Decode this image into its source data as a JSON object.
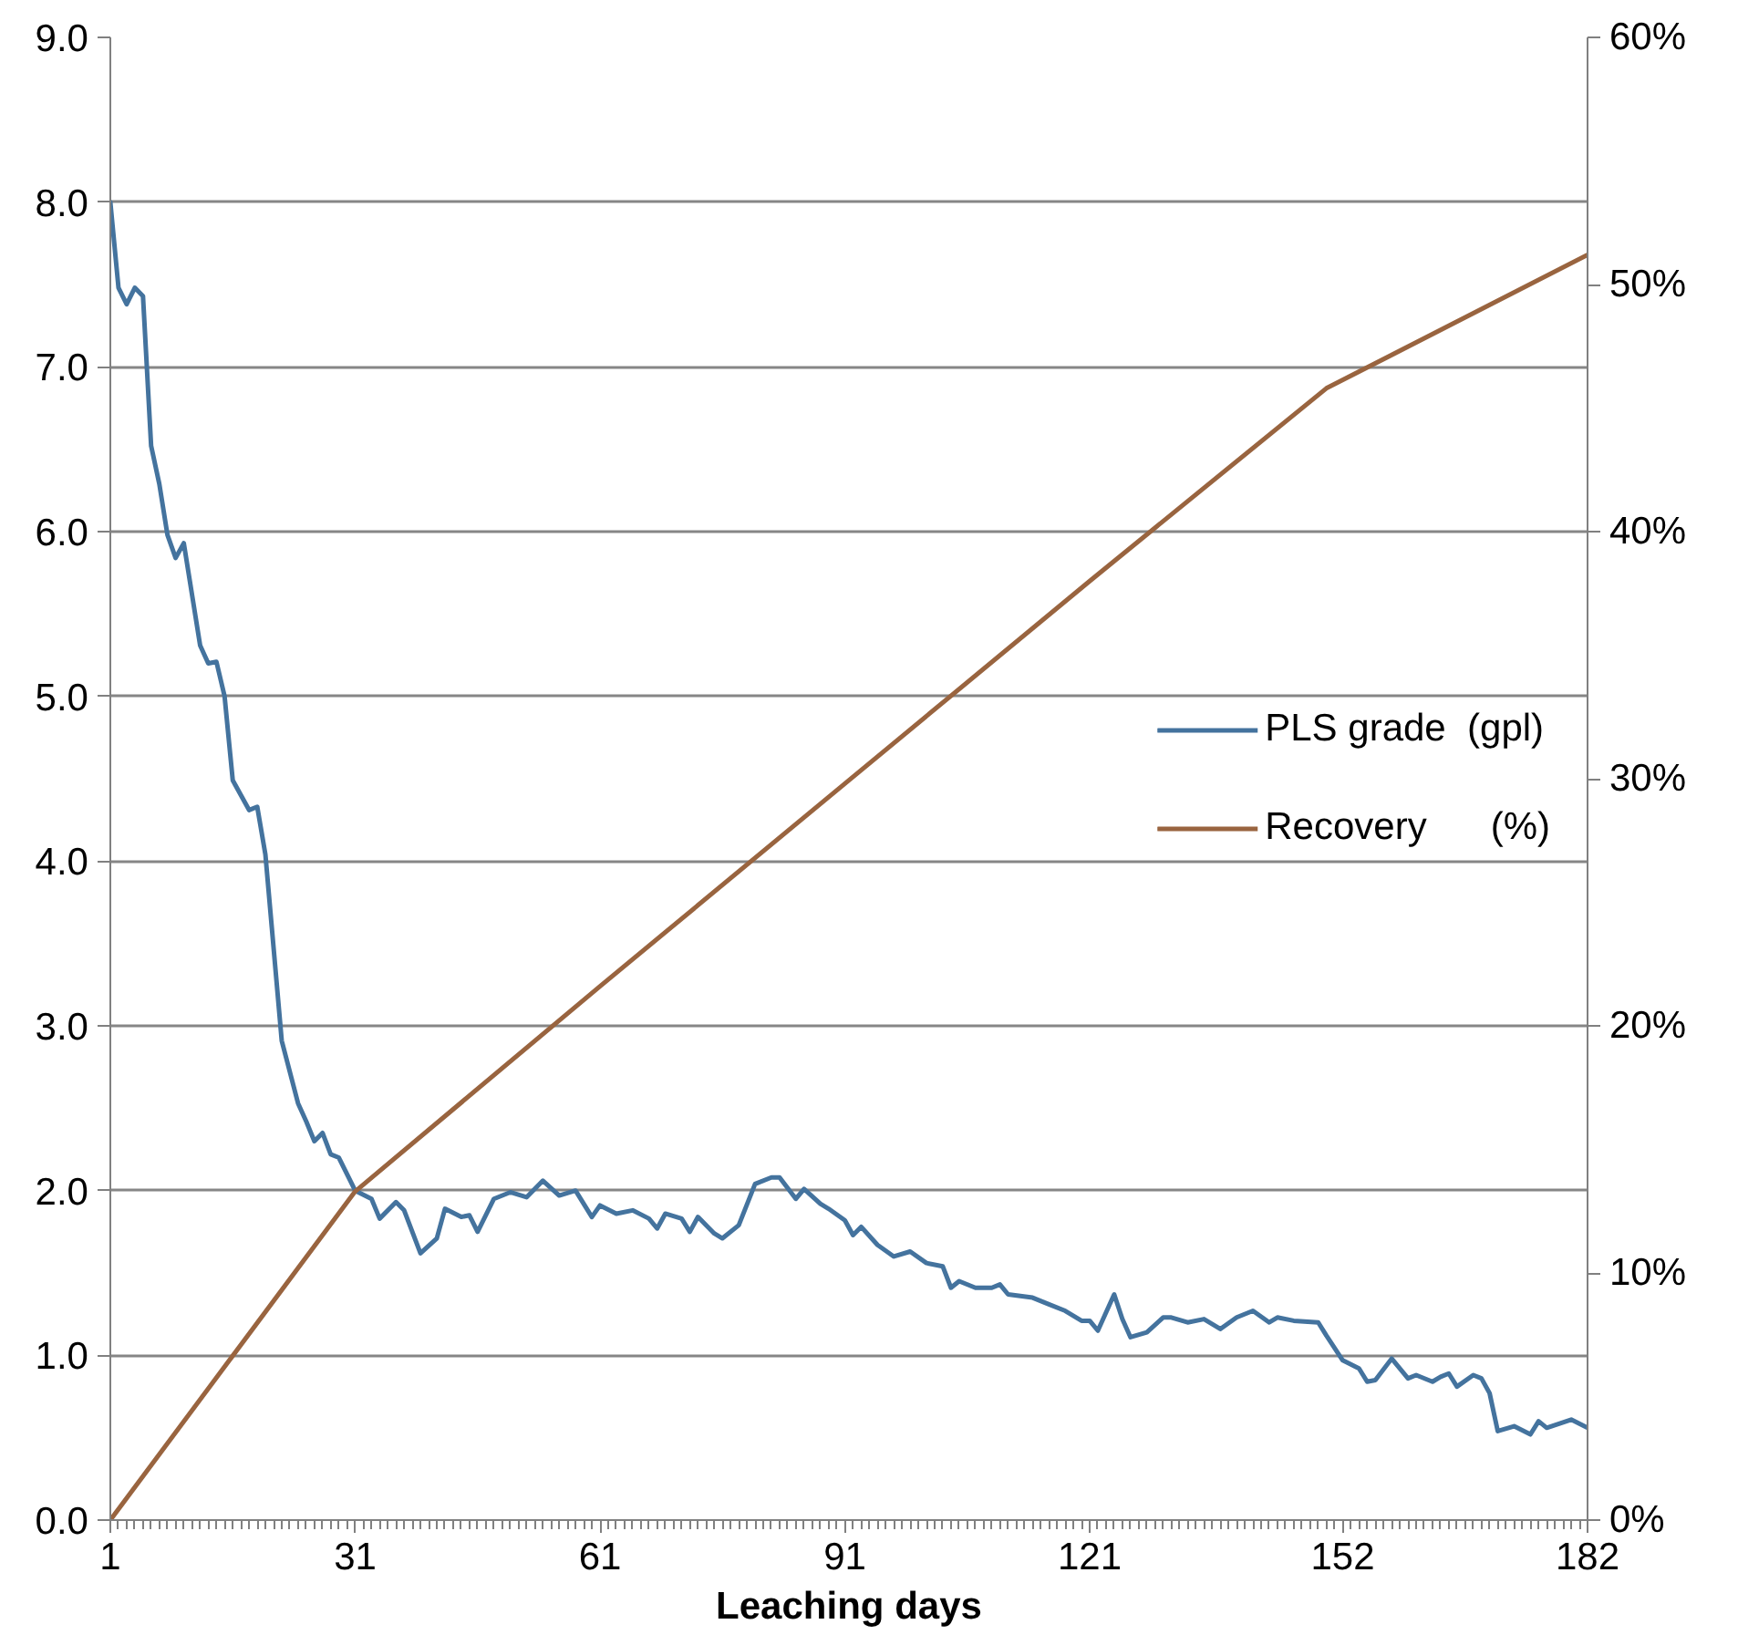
{
  "chart_data": {
    "type": "line",
    "xlabel": "Leaching days",
    "x": [
      1,
      2,
      3,
      4,
      5,
      6,
      7,
      8,
      9,
      10,
      12,
      13,
      14,
      15,
      16,
      18,
      19,
      20,
      22,
      24,
      25,
      26,
      27,
      28,
      29,
      31,
      33,
      34,
      36,
      37,
      39,
      41,
      42,
      44,
      45,
      46,
      48,
      50,
      52,
      54,
      56,
      58,
      60,
      61,
      63,
      65,
      67,
      68,
      69,
      71,
      72,
      73,
      75,
      76,
      78,
      80,
      82,
      83,
      85,
      86,
      88,
      89,
      91,
      92,
      93,
      95,
      97,
      99,
      101,
      103,
      104,
      105,
      107,
      109,
      110,
      111,
      114,
      116,
      118,
      120,
      121,
      122,
      124,
      125,
      126,
      128,
      130,
      131,
      133,
      135,
      137,
      139,
      141,
      143,
      144,
      146,
      149,
      150,
      152,
      154,
      155,
      156,
      158,
      160,
      161,
      163,
      164,
      165,
      166,
      168,
      169,
      170,
      171,
      173,
      175,
      176,
      177,
      180,
      182
    ],
    "series": [
      {
        "name": "PLS grade  (gpl)",
        "color": "#44739e",
        "axis": "y",
        "values": [
          8.0,
          7.48,
          7.38,
          7.48,
          7.43,
          6.52,
          6.29,
          5.98,
          5.84,
          5.93,
          5.31,
          5.2,
          5.21,
          5.0,
          4.49,
          4.31,
          4.33,
          4.04,
          2.91,
          2.53,
          2.42,
          2.3,
          2.35,
          2.22,
          2.2,
          2.0,
          1.95,
          1.83,
          1.93,
          1.88,
          1.62,
          1.71,
          1.89,
          1.84,
          1.85,
          1.75,
          1.95,
          1.99,
          1.96,
          2.06,
          1.97,
          2.0,
          1.84,
          1.91,
          1.86,
          1.88,
          1.83,
          1.77,
          1.86,
          1.83,
          1.75,
          1.84,
          1.74,
          1.71,
          1.79,
          2.04,
          2.08,
          2.08,
          1.95,
          2.01,
          1.92,
          1.89,
          1.82,
          1.73,
          1.78,
          1.67,
          1.6,
          1.63,
          1.56,
          1.54,
          1.41,
          1.45,
          1.41,
          1.41,
          1.43,
          1.37,
          1.35,
          1.31,
          1.27,
          1.21,
          1.21,
          1.15,
          1.37,
          1.22,
          1.11,
          1.14,
          1.23,
          1.23,
          1.2,
          1.22,
          1.16,
          1.23,
          1.27,
          1.2,
          1.23,
          1.21,
          1.2,
          1.12,
          0.97,
          0.92,
          0.84,
          0.85,
          0.98,
          0.86,
          0.88,
          0.84,
          0.87,
          0.89,
          0.81,
          0.88,
          0.86,
          0.77,
          0.54,
          0.57,
          0.52,
          0.6,
          0.56,
          0.61,
          0.56
        ]
      },
      {
        "name": "Recovery      (%)",
        "color": "#99643f",
        "axis": "y2",
        "x": [
          1,
          31,
          61,
          91,
          121,
          150,
          182
        ],
        "values": [
          0,
          13.3,
          21.6,
          29.8,
          38.0,
          45.8,
          51.2
        ]
      }
    ],
    "xlim": [
      1,
      182
    ],
    "xticks": [
      1,
      31,
      61,
      91,
      121,
      152,
      182
    ],
    "ylim": [
      0,
      9
    ],
    "yticks": [
      {
        "value": 0,
        "label": "0.0"
      },
      {
        "value": 1,
        "label": "1.0"
      },
      {
        "value": 2,
        "label": "2.0"
      },
      {
        "value": 3,
        "label": "3.0"
      },
      {
        "value": 4,
        "label": "4.0"
      },
      {
        "value": 5,
        "label": "5.0"
      },
      {
        "value": 6,
        "label": "6.0"
      },
      {
        "value": 7,
        "label": "7.0"
      },
      {
        "value": 8,
        "label": "8.0"
      },
      {
        "value": 9,
        "label": "9.0"
      }
    ],
    "y2lim": [
      0,
      60
    ],
    "y2ticks": [
      {
        "value": 0,
        "label": "0%"
      },
      {
        "value": 10,
        "label": "10%"
      },
      {
        "value": 20,
        "label": "20%"
      },
      {
        "value": 30,
        "label": "30%"
      },
      {
        "value": 40,
        "label": "40%"
      },
      {
        "value": 50,
        "label": "50%"
      },
      {
        "value": 60,
        "label": "60%"
      }
    ],
    "grid": "y",
    "legend": "right",
    "line_style": "solid"
  }
}
